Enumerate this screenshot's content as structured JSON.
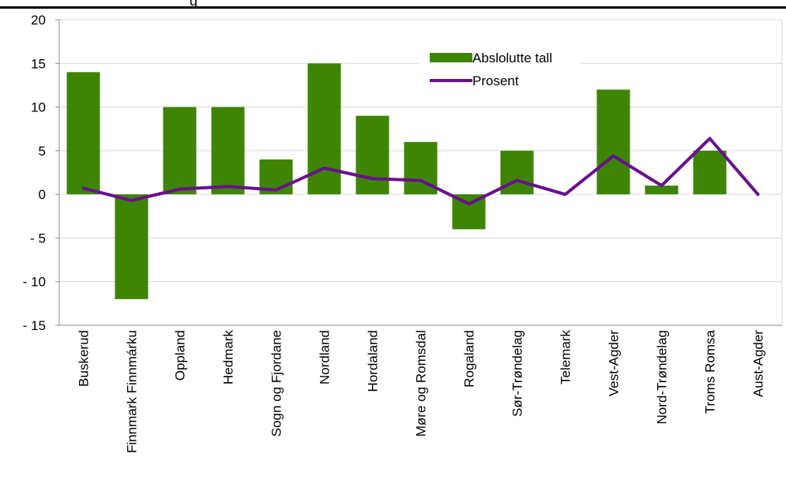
{
  "header": {
    "fragment": "g"
  },
  "colors": {
    "bar": "#3e8505",
    "line": "#6a0f8e",
    "grid": "#d9d9d9",
    "axis": "#8c8c8c"
  },
  "chart_data": {
    "type": "bar",
    "categories": [
      "Buskerud",
      "Finnmark Finnmárku",
      "Oppland",
      "Hedmark",
      "Sogn og Fjordane",
      "Nordland",
      "Hordaland",
      "Møre og Romsdal",
      "Rogaland",
      "Sør-Trøndelag",
      "Telemark",
      "Vest-Agder",
      "Nord-Trøndelag",
      "Troms Romsa",
      "Aust-Agder"
    ],
    "series": [
      {
        "name": "Abslolutte tall",
        "kind": "bar",
        "values": [
          14,
          -12,
          10,
          10,
          4,
          15,
          9,
          6,
          -4,
          5,
          0,
          12,
          1,
          5,
          0
        ]
      },
      {
        "name": "Prosent",
        "kind": "line",
        "values": [
          0.7,
          -0.7,
          0.6,
          0.9,
          0.5,
          3.0,
          1.8,
          1.6,
          -1.1,
          1.6,
          0.0,
          4.4,
          1.0,
          6.4,
          0.0
        ]
      }
    ],
    "ylim": [
      -15,
      20
    ],
    "yticks": [
      20,
      15,
      10,
      5,
      0,
      -5,
      -10,
      -15
    ],
    "ytick_labels": [
      "20",
      "15",
      "10",
      "5",
      "0",
      "- 5",
      "- 10",
      "- 15"
    ],
    "grid": true,
    "legend": "top-center"
  }
}
